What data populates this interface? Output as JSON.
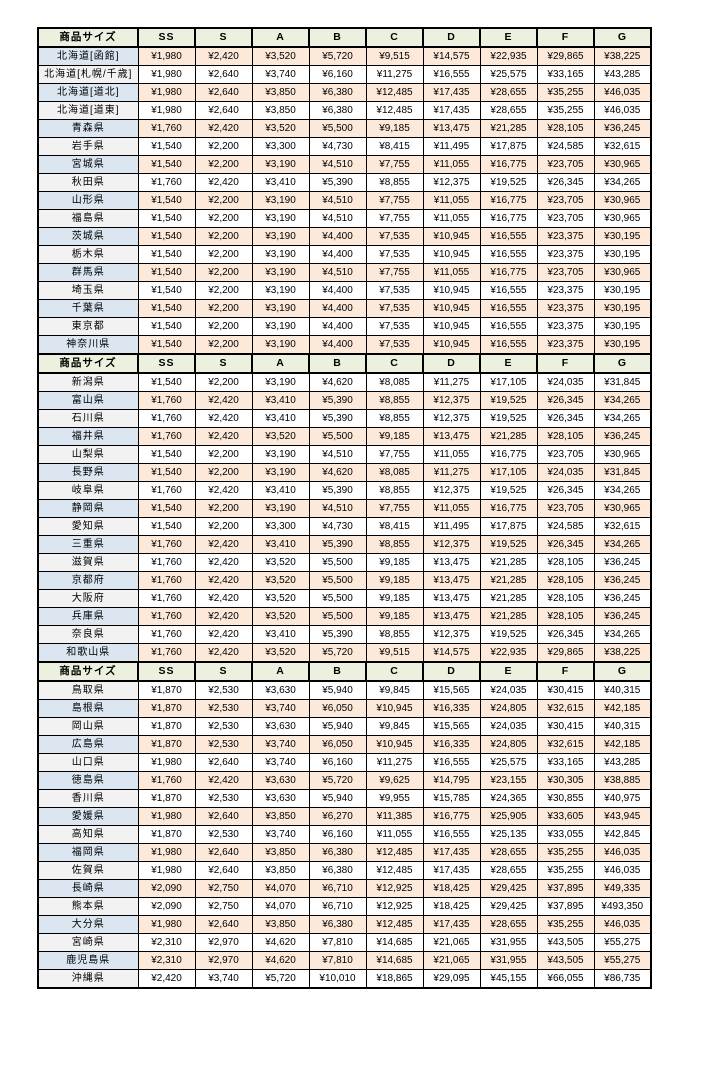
{
  "colors": {
    "header_bg": "#EBF1DE",
    "row_pink": "#FDE9D9",
    "row_white": "#FFFFFF",
    "name_blue": "#DCE6F1",
    "name_gray": "#F2F2F2",
    "border": "#000000"
  },
  "table": {
    "header": {
      "label": "商品サイズ",
      "sizes": [
        "SS",
        "S",
        "A",
        "B",
        "C",
        "D",
        "E",
        "F",
        "G"
      ]
    },
    "sections": [
      {
        "rows": [
          {
            "name": "北海道[函館]",
            "values": [
              "¥1,980",
              "¥2,420",
              "¥3,520",
              "¥5,720",
              "¥9,515",
              "¥14,575",
              "¥22,935",
              "¥29,865",
              "¥38,225"
            ]
          },
          {
            "name": "北海道[札幌/千歳]",
            "values": [
              "¥1,980",
              "¥2,640",
              "¥3,740",
              "¥6,160",
              "¥11,275",
              "¥16,555",
              "¥25,575",
              "¥33,165",
              "¥43,285"
            ]
          },
          {
            "name": "北海道[道北]",
            "values": [
              "¥1,980",
              "¥2,640",
              "¥3,850",
              "¥6,380",
              "¥12,485",
              "¥17,435",
              "¥28,655",
              "¥35,255",
              "¥46,035"
            ]
          },
          {
            "name": "北海道[道東]",
            "values": [
              "¥1,980",
              "¥2,640",
              "¥3,850",
              "¥6,380",
              "¥12,485",
              "¥17,435",
              "¥28,655",
              "¥35,255",
              "¥46,035"
            ]
          },
          {
            "name": "青森県",
            "values": [
              "¥1,760",
              "¥2,420",
              "¥3,520",
              "¥5,500",
              "¥9,185",
              "¥13,475",
              "¥21,285",
              "¥28,105",
              "¥36,245"
            ]
          },
          {
            "name": "岩手県",
            "values": [
              "¥1,540",
              "¥2,200",
              "¥3,300",
              "¥4,730",
              "¥8,415",
              "¥11,495",
              "¥17,875",
              "¥24,585",
              "¥32,615"
            ]
          },
          {
            "name": "宮城県",
            "values": [
              "¥1,540",
              "¥2,200",
              "¥3,190",
              "¥4,510",
              "¥7,755",
              "¥11,055",
              "¥16,775",
              "¥23,705",
              "¥30,965"
            ]
          },
          {
            "name": "秋田県",
            "values": [
              "¥1,760",
              "¥2,420",
              "¥3,410",
              "¥5,390",
              "¥8,855",
              "¥12,375",
              "¥19,525",
              "¥26,345",
              "¥34,265"
            ]
          },
          {
            "name": "山形県",
            "values": [
              "¥1,540",
              "¥2,200",
              "¥3,190",
              "¥4,510",
              "¥7,755",
              "¥11,055",
              "¥16,775",
              "¥23,705",
              "¥30,965"
            ]
          },
          {
            "name": "福島県",
            "values": [
              "¥1,540",
              "¥2,200",
              "¥3,190",
              "¥4,510",
              "¥7,755",
              "¥11,055",
              "¥16,775",
              "¥23,705",
              "¥30,965"
            ]
          },
          {
            "name": "茨城県",
            "values": [
              "¥1,540",
              "¥2,200",
              "¥3,190",
              "¥4,400",
              "¥7,535",
              "¥10,945",
              "¥16,555",
              "¥23,375",
              "¥30,195"
            ]
          },
          {
            "name": "栃木県",
            "values": [
              "¥1,540",
              "¥2,200",
              "¥3,190",
              "¥4,400",
              "¥7,535",
              "¥10,945",
              "¥16,555",
              "¥23,375",
              "¥30,195"
            ]
          },
          {
            "name": "群馬県",
            "values": [
              "¥1,540",
              "¥2,200",
              "¥3,190",
              "¥4,510",
              "¥7,755",
              "¥11,055",
              "¥16,775",
              "¥23,705",
              "¥30,965"
            ]
          },
          {
            "name": "埼玉県",
            "values": [
              "¥1,540",
              "¥2,200",
              "¥3,190",
              "¥4,400",
              "¥7,535",
              "¥10,945",
              "¥16,555",
              "¥23,375",
              "¥30,195"
            ]
          },
          {
            "name": "千葉県",
            "values": [
              "¥1,540",
              "¥2,200",
              "¥3,190",
              "¥4,400",
              "¥7,535",
              "¥10,945",
              "¥16,555",
              "¥23,375",
              "¥30,195"
            ]
          },
          {
            "name": "東京都",
            "values": [
              "¥1,540",
              "¥2,200",
              "¥3,190",
              "¥4,400",
              "¥7,535",
              "¥10,945",
              "¥16,555",
              "¥23,375",
              "¥30,195"
            ]
          },
          {
            "name": "神奈川県",
            "values": [
              "¥1,540",
              "¥2,200",
              "¥3,190",
              "¥4,400",
              "¥7,535",
              "¥10,945",
              "¥16,555",
              "¥23,375",
              "¥30,195"
            ]
          }
        ]
      },
      {
        "rows": [
          {
            "name": "新潟県",
            "values": [
              "¥1,540",
              "¥2,200",
              "¥3,190",
              "¥4,620",
              "¥8,085",
              "¥11,275",
              "¥17,105",
              "¥24,035",
              "¥31,845"
            ]
          },
          {
            "name": "富山県",
            "values": [
              "¥1,760",
              "¥2,420",
              "¥3,410",
              "¥5,390",
              "¥8,855",
              "¥12,375",
              "¥19,525",
              "¥26,345",
              "¥34,265"
            ]
          },
          {
            "name": "石川県",
            "values": [
              "¥1,760",
              "¥2,420",
              "¥3,410",
              "¥5,390",
              "¥8,855",
              "¥12,375",
              "¥19,525",
              "¥26,345",
              "¥34,265"
            ]
          },
          {
            "name": "福井県",
            "values": [
              "¥1,760",
              "¥2,420",
              "¥3,520",
              "¥5,500",
              "¥9,185",
              "¥13,475",
              "¥21,285",
              "¥28,105",
              "¥36,245"
            ]
          },
          {
            "name": "山梨県",
            "values": [
              "¥1,540",
              "¥2,200",
              "¥3,190",
              "¥4,510",
              "¥7,755",
              "¥11,055",
              "¥16,775",
              "¥23,705",
              "¥30,965"
            ]
          },
          {
            "name": "長野県",
            "values": [
              "¥1,540",
              "¥2,200",
              "¥3,190",
              "¥4,620",
              "¥8,085",
              "¥11,275",
              "¥17,105",
              "¥24,035",
              "¥31,845"
            ]
          },
          {
            "name": "岐阜県",
            "values": [
              "¥1,760",
              "¥2,420",
              "¥3,410",
              "¥5,390",
              "¥8,855",
              "¥12,375",
              "¥19,525",
              "¥26,345",
              "¥34,265"
            ]
          },
          {
            "name": "静岡県",
            "values": [
              "¥1,540",
              "¥2,200",
              "¥3,190",
              "¥4,510",
              "¥7,755",
              "¥11,055",
              "¥16,775",
              "¥23,705",
              "¥30,965"
            ]
          },
          {
            "name": "愛知県",
            "values": [
              "¥1,540",
              "¥2,200",
              "¥3,300",
              "¥4,730",
              "¥8,415",
              "¥11,495",
              "¥17,875",
              "¥24,585",
              "¥32,615"
            ]
          },
          {
            "name": "三重県",
            "values": [
              "¥1,760",
              "¥2,420",
              "¥3,410",
              "¥5,390",
              "¥8,855",
              "¥12,375",
              "¥19,525",
              "¥26,345",
              "¥34,265"
            ]
          },
          {
            "name": "滋賀県",
            "values": [
              "¥1,760",
              "¥2,420",
              "¥3,520",
              "¥5,500",
              "¥9,185",
              "¥13,475",
              "¥21,285",
              "¥28,105",
              "¥36,245"
            ]
          },
          {
            "name": "京都府",
            "values": [
              "¥1,760",
              "¥2,420",
              "¥3,520",
              "¥5,500",
              "¥9,185",
              "¥13,475",
              "¥21,285",
              "¥28,105",
              "¥36,245"
            ]
          },
          {
            "name": "大阪府",
            "values": [
              "¥1,760",
              "¥2,420",
              "¥3,520",
              "¥5,500",
              "¥9,185",
              "¥13,475",
              "¥21,285",
              "¥28,105",
              "¥36,245"
            ]
          },
          {
            "name": "兵庫県",
            "values": [
              "¥1,760",
              "¥2,420",
              "¥3,520",
              "¥5,500",
              "¥9,185",
              "¥13,475",
              "¥21,285",
              "¥28,105",
              "¥36,245"
            ]
          },
          {
            "name": "奈良県",
            "values": [
              "¥1,760",
              "¥2,420",
              "¥3,410",
              "¥5,390",
              "¥8,855",
              "¥12,375",
              "¥19,525",
              "¥26,345",
              "¥34,265"
            ]
          },
          {
            "name": "和歌山県",
            "values": [
              "¥1,760",
              "¥2,420",
              "¥3,520",
              "¥5,720",
              "¥9,515",
              "¥14,575",
              "¥22,935",
              "¥29,865",
              "¥38,225"
            ]
          }
        ]
      },
      {
        "rows": [
          {
            "name": "鳥取県",
            "values": [
              "¥1,870",
              "¥2,530",
              "¥3,630",
              "¥5,940",
              "¥9,845",
              "¥15,565",
              "¥24,035",
              "¥30,415",
              "¥40,315"
            ]
          },
          {
            "name": "島根県",
            "values": [
              "¥1,870",
              "¥2,530",
              "¥3,740",
              "¥6,050",
              "¥10,945",
              "¥16,335",
              "¥24,805",
              "¥32,615",
              "¥42,185"
            ]
          },
          {
            "name": "岡山県",
            "values": [
              "¥1,870",
              "¥2,530",
              "¥3,630",
              "¥5,940",
              "¥9,845",
              "¥15,565",
              "¥24,035",
              "¥30,415",
              "¥40,315"
            ]
          },
          {
            "name": "広島県",
            "values": [
              "¥1,870",
              "¥2,530",
              "¥3,740",
              "¥6,050",
              "¥10,945",
              "¥16,335",
              "¥24,805",
              "¥32,615",
              "¥42,185"
            ]
          },
          {
            "name": "山口県",
            "values": [
              "¥1,980",
              "¥2,640",
              "¥3,740",
              "¥6,160",
              "¥11,275",
              "¥16,555",
              "¥25,575",
              "¥33,165",
              "¥43,285"
            ]
          },
          {
            "name": "徳島県",
            "values": [
              "¥1,760",
              "¥2,420",
              "¥3,630",
              "¥5,720",
              "¥9,625",
              "¥14,795",
              "¥23,155",
              "¥30,305",
              "¥38,885"
            ]
          },
          {
            "name": "香川県",
            "values": [
              "¥1,870",
              "¥2,530",
              "¥3,630",
              "¥5,940",
              "¥9,955",
              "¥15,785",
              "¥24,365",
              "¥30,855",
              "¥40,975"
            ]
          },
          {
            "name": "愛媛県",
            "values": [
              "¥1,980",
              "¥2,640",
              "¥3,850",
              "¥6,270",
              "¥11,385",
              "¥16,775",
              "¥25,905",
              "¥33,605",
              "¥43,945"
            ]
          },
          {
            "name": "高知県",
            "values": [
              "¥1,870",
              "¥2,530",
              "¥3,740",
              "¥6,160",
              "¥11,055",
              "¥16,555",
              "¥25,135",
              "¥33,055",
              "¥42,845"
            ]
          },
          {
            "name": "福岡県",
            "values": [
              "¥1,980",
              "¥2,640",
              "¥3,850",
              "¥6,380",
              "¥12,485",
              "¥17,435",
              "¥28,655",
              "¥35,255",
              "¥46,035"
            ]
          },
          {
            "name": "佐賀県",
            "values": [
              "¥1,980",
              "¥2,640",
              "¥3,850",
              "¥6,380",
              "¥12,485",
              "¥17,435",
              "¥28,655",
              "¥35,255",
              "¥46,035"
            ]
          },
          {
            "name": "長崎県",
            "values": [
              "¥2,090",
              "¥2,750",
              "¥4,070",
              "¥6,710",
              "¥12,925",
              "¥18,425",
              "¥29,425",
              "¥37,895",
              "¥49,335"
            ]
          },
          {
            "name": "熊本県",
            "values": [
              "¥2,090",
              "¥2,750",
              "¥4,070",
              "¥6,710",
              "¥12,925",
              "¥18,425",
              "¥29,425",
              "¥37,895",
              "¥493,350"
            ]
          },
          {
            "name": "大分県",
            "values": [
              "¥1,980",
              "¥2,640",
              "¥3,850",
              "¥6,380",
              "¥12,485",
              "¥17,435",
              "¥28,655",
              "¥35,255",
              "¥46,035"
            ]
          },
          {
            "name": "宮崎県",
            "values": [
              "¥2,310",
              "¥2,970",
              "¥4,620",
              "¥7,810",
              "¥14,685",
              "¥21,065",
              "¥31,955",
              "¥43,505",
              "¥55,275"
            ]
          },
          {
            "name": "鹿児島県",
            "values": [
              "¥2,310",
              "¥2,970",
              "¥4,620",
              "¥7,810",
              "¥14,685",
              "¥21,065",
              "¥31,955",
              "¥43,505",
              "¥55,275"
            ]
          },
          {
            "name": "沖縄県",
            "values": [
              "¥2,420",
              "¥3,740",
              "¥5,720",
              "¥10,010",
              "¥18,865",
              "¥29,095",
              "¥45,155",
              "¥66,055",
              "¥86,735"
            ]
          }
        ]
      }
    ]
  }
}
